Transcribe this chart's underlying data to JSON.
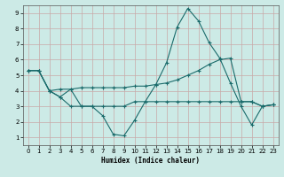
{
  "xlabel": "Humidex (Indice chaleur)",
  "ylabel": "",
  "background_color": "#cceae6",
  "grid_color": "#b8d8d4",
  "line_color": "#1a6b6b",
  "xlim": [
    -0.5,
    23.5
  ],
  "ylim": [
    0.5,
    9.5
  ],
  "xticks": [
    0,
    1,
    2,
    3,
    4,
    5,
    6,
    7,
    8,
    9,
    10,
    11,
    12,
    13,
    14,
    15,
    16,
    17,
    18,
    19,
    20,
    21,
    22,
    23
  ],
  "yticks": [
    1,
    2,
    3,
    4,
    5,
    6,
    7,
    8,
    9
  ],
  "series": [
    [
      5.3,
      5.3,
      4.0,
      3.6,
      4.1,
      3.0,
      3.0,
      2.4,
      1.2,
      1.1,
      2.1,
      3.3,
      4.4,
      5.8,
      8.1,
      9.3,
      8.5,
      7.1,
      6.1,
      4.5,
      3.0,
      1.8,
      3.0,
      3.1
    ],
    [
      5.3,
      5.3,
      4.0,
      4.1,
      4.1,
      4.2,
      4.2,
      4.2,
      4.2,
      4.2,
      4.3,
      4.3,
      4.4,
      4.5,
      4.7,
      5.0,
      5.3,
      5.7,
      6.0,
      6.1,
      3.3,
      3.3,
      3.0,
      3.1
    ],
    [
      5.3,
      5.3,
      4.0,
      3.6,
      3.0,
      3.0,
      3.0,
      3.0,
      3.0,
      3.0,
      3.3,
      3.3,
      3.3,
      3.3,
      3.3,
      3.3,
      3.3,
      3.3,
      3.3,
      3.3,
      3.3,
      3.3,
      3.0,
      3.1
    ]
  ]
}
